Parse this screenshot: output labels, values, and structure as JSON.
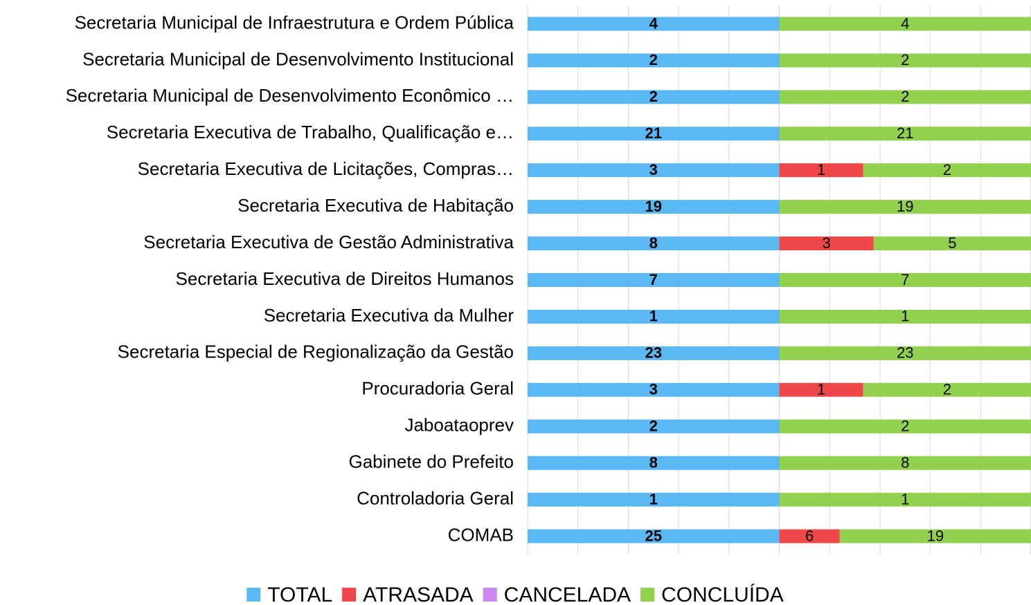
{
  "chart_data": {
    "type": "bar",
    "orientation": "horizontal",
    "stacking": "percent",
    "categories": [
      "Secretaria Municipal de Infraestrutura e Ordem Pública",
      "Secretaria Municipal de Desenvolvimento Institucional",
      "Secretaria Municipal de Desenvolvimento Econômico …",
      "Secretaria Executiva de Trabalho, Qualificação e…",
      "Secretaria Executiva de Licitações, Compras…",
      "Secretaria Executiva de Habitação",
      "Secretaria Executiva de Gestão Administrativa",
      "Secretaria Executiva de Direitos Humanos",
      "Secretaria Executiva da Mulher",
      "Secretaria Especial de Regionalização da Gestão",
      "Procuradoria Geral",
      "Jaboataoprev",
      "Gabinete do Prefeito",
      "Controladoria Geral",
      "COMAB"
    ],
    "series": [
      {
        "name": "TOTAL",
        "color": "#5bb8f5",
        "values": [
          4,
          2,
          2,
          21,
          3,
          19,
          8,
          7,
          1,
          23,
          3,
          2,
          8,
          1,
          25
        ]
      },
      {
        "name": "ATRASADA",
        "color": "#f0484a",
        "values": [
          0,
          0,
          0,
          0,
          1,
          0,
          3,
          0,
          0,
          0,
          1,
          0,
          0,
          0,
          6
        ]
      },
      {
        "name": "CANCELADA",
        "color": "#cc88ee",
        "values": [
          0,
          0,
          0,
          0,
          0,
          0,
          0,
          0,
          0,
          0,
          0,
          0,
          0,
          0,
          0
        ]
      },
      {
        "name": "CONCLUÍDA",
        "color": "#92d050",
        "values": [
          4,
          2,
          2,
          21,
          2,
          19,
          5,
          7,
          1,
          23,
          2,
          2,
          8,
          1,
          19
        ]
      }
    ],
    "xlim": [
      0,
      100
    ],
    "xticks": [
      0,
      10,
      20,
      30,
      40,
      50,
      60,
      70,
      80,
      90,
      100
    ],
    "grid": true,
    "legend": "bottom"
  }
}
